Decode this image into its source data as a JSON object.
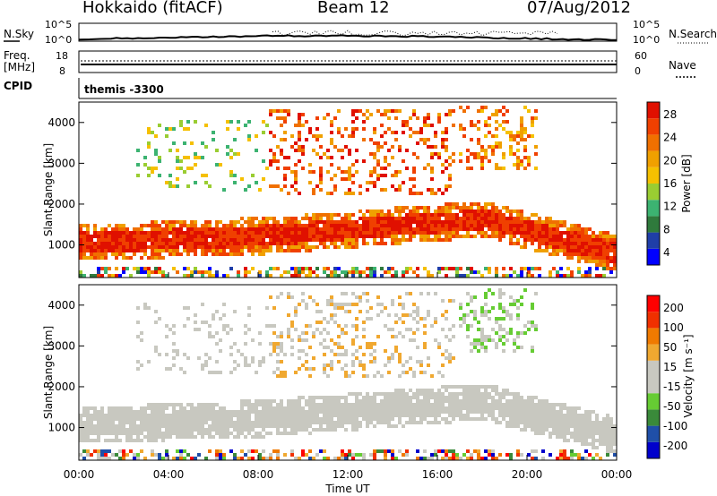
{
  "header": {
    "station": "Hokkaido (fitACF)",
    "beam": "Beam 12",
    "date": "07/Aug/2012"
  },
  "top_panels": {
    "nsky_label": "N.Sky",
    "nsky_ticks": [
      "10^5",
      "10^0"
    ],
    "nsearch_label": "N.Search",
    "nsearch_ticks": [
      "10^5",
      "10^0"
    ],
    "freq_label_1": "Freq.",
    "freq_label_2": "[MHz]",
    "freq_ticks": [
      "18",
      "8"
    ],
    "nave_label": "Nave",
    "nave_ticks": [
      "60",
      "0"
    ],
    "cpid_label": "CPID",
    "cpid_value": "themis -3300"
  },
  "colors": {
    "power": [
      "#0000ff",
      "#1f3ea8",
      "#2f7a3c",
      "#3cb371",
      "#9acd32",
      "#f5c000",
      "#f0a000",
      "#f07000",
      "#f04000",
      "#e01000"
    ],
    "velocity": [
      "#ff0000",
      "#f03000",
      "#f07a00",
      "#f0a830",
      "#c8c8c0",
      "#c8c8c0",
      "#66cc33",
      "#3a8a3a",
      "#1f4fa8",
      "#0000cc"
    ]
  },
  "chart_data": [
    {
      "type": "heatmap",
      "title": "",
      "ylabel": "Slant Range [km]",
      "xlabel": "Time UT",
      "x_ticks": [
        "00:00",
        "04:00",
        "08:00",
        "12:00",
        "16:00",
        "20:00",
        "00:00"
      ],
      "y_ticks": [
        "1000",
        "2000",
        "3000",
        "4000"
      ],
      "ylim": [
        200,
        4500
      ],
      "colorbar_label": "Power [dB]",
      "colorbar_ticks": [
        "4",
        "8",
        "12",
        "16",
        "20",
        "24",
        "28"
      ],
      "colorbar_range": [
        0,
        30
      ]
    },
    {
      "type": "heatmap",
      "title": "",
      "ylabel": "Slant Range [km]",
      "xlabel": "Time UT",
      "x_ticks": [
        "00:00",
        "04:00",
        "08:00",
        "12:00",
        "16:00",
        "20:00",
        "00:00"
      ],
      "y_ticks": [
        "1000",
        "2000",
        "3000",
        "4000"
      ],
      "ylim": [
        200,
        4500
      ],
      "colorbar_label": "Velocity [m s⁻¹]",
      "colorbar_ticks": [
        "200",
        "100",
        "50",
        "15",
        "-15",
        "-50",
        "-100",
        "-200"
      ],
      "colorbar_range": [
        -250,
        250
      ]
    }
  ]
}
